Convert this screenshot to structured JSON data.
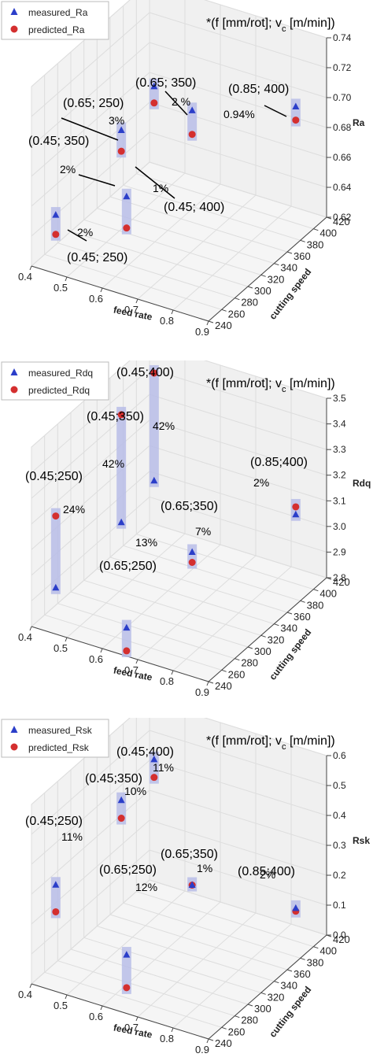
{
  "chart_data": [
    {
      "type": "scatter",
      "projection": "3d",
      "note": "*(f [mm/rot]; v",
      "note_sub": "c",
      "note_tail": " [m/min])",
      "xlabel": "feed rate",
      "ylabel": "cutting speed",
      "zlabel": "Ra",
      "xlim": [
        0.4,
        0.9
      ],
      "ylim": [
        240,
        420
      ],
      "zlim": [
        0.62,
        0.74
      ],
      "x_ticks": [
        "0.4",
        "0.5",
        "0.6",
        "0.7",
        "0.8",
        "0.9"
      ],
      "y_ticks": [
        "240",
        "260",
        "280",
        "300",
        "320",
        "340",
        "360",
        "380",
        "400",
        "420"
      ],
      "z_ticks": [
        "0.62",
        "0.64",
        "0.66",
        "0.68",
        "0.70",
        "0.72",
        "0.74"
      ],
      "legend": [
        "measured_Ra",
        "predicted_Ra"
      ],
      "legend_position": "top-left",
      "grid": true,
      "series": [
        {
          "name": "measured_Ra",
          "marker": "triangle",
          "color": "#2b3ec9",
          "points": [
            {
              "f": 0.45,
              "vc": 250,
              "z": 0.654
            },
            {
              "f": 0.45,
              "vc": 350,
              "z": 0.672
            },
            {
              "f": 0.65,
              "vc": 250,
              "z": 0.681
            },
            {
              "f": 0.45,
              "vc": 400,
              "z": 0.682
            },
            {
              "f": 0.65,
              "vc": 350,
              "z": 0.7
            },
            {
              "f": 0.85,
              "vc": 400,
              "z": 0.698
            }
          ]
        },
        {
          "name": "predicted_Ra",
          "marker": "circle",
          "color": "#d42f2f",
          "points": [
            {
              "f": 0.45,
              "vc": 250,
              "z": 0.641
            },
            {
              "f": 0.45,
              "vc": 350,
              "z": 0.658
            },
            {
              "f": 0.65,
              "vc": 250,
              "z": 0.66
            },
            {
              "f": 0.45,
              "vc": 400,
              "z": 0.671
            },
            {
              "f": 0.65,
              "vc": 350,
              "z": 0.684
            },
            {
              "f": 0.85,
              "vc": 400,
              "z": 0.689
            }
          ]
        }
      ],
      "annotations": [
        {
          "text": "(0.45; 250)",
          "pct": "2%"
        },
        {
          "text": "(0.45; 350)",
          "pct": "2%"
        },
        {
          "text": "(0.65; 250)",
          "pct": "3%"
        },
        {
          "text": "(0.45; 400)",
          "pct": "1%"
        },
        {
          "text": "(0.65; 350)",
          "pct": "2 %"
        },
        {
          "text": "(0.85; 400)",
          "pct": "0.94%"
        }
      ]
    },
    {
      "type": "scatter",
      "projection": "3d",
      "note": "*(f [mm/rot]; v",
      "note_sub": "c",
      "note_tail": " [m/min])",
      "xlabel": "feed rate",
      "ylabel": "cutting speed",
      "zlabel": "Rdq",
      "xlim": [
        0.4,
        0.9
      ],
      "ylim": [
        240,
        420
      ],
      "zlim": [
        2.8,
        3.5
      ],
      "x_ticks": [
        "0.4",
        "0.5",
        "0.6",
        "0.7",
        "0.8",
        "0.9"
      ],
      "y_ticks": [
        "240",
        "260",
        "280",
        "300",
        "320",
        "340",
        "360",
        "380",
        "400",
        "420"
      ],
      "z_ticks": [
        "2.8",
        "2.9",
        "3.0",
        "3.1",
        "3.2",
        "3.3",
        "3.4",
        "3.5"
      ],
      "legend": [
        "measured_Rdq",
        "predicted_Rdq"
      ],
      "legend_position": "top-left",
      "grid": true,
      "series": [
        {
          "name": "measured_Rdq",
          "marker": "triangle",
          "color": "#2b3ec9",
          "points": [
            {
              "f": 0.45,
              "vc": 250,
              "z": 2.95
            },
            {
              "f": 0.45,
              "vc": 350,
              "z": 2.98
            },
            {
              "f": 0.45,
              "vc": 400,
              "z": 3.03
            },
            {
              "f": 0.65,
              "vc": 250,
              "z": 2.88
            },
            {
              "f": 0.65,
              "vc": 350,
              "z": 2.95
            },
            {
              "f": 0.85,
              "vc": 400,
              "z": 3.07
            }
          ]
        },
        {
          "name": "predicted_Rdq",
          "marker": "circle",
          "color": "#d42f2f",
          "points": [
            {
              "f": 0.45,
              "vc": 250,
              "z": 3.23
            },
            {
              "f": 0.45,
              "vc": 350,
              "z": 3.4
            },
            {
              "f": 0.45,
              "vc": 400,
              "z": 3.45
            },
            {
              "f": 0.65,
              "vc": 250,
              "z": 2.79
            },
            {
              "f": 0.65,
              "vc": 350,
              "z": 2.91
            },
            {
              "f": 0.85,
              "vc": 400,
              "z": 3.1
            }
          ]
        }
      ],
      "annotations": [
        {
          "text": "(0.45;250)",
          "pct": "24%"
        },
        {
          "text": "(0.45;350)",
          "pct": "42%"
        },
        {
          "text": "(0.45;400)",
          "pct": "42%"
        },
        {
          "text": "(0.65;250)",
          "pct": "13%"
        },
        {
          "text": "(0.65;350)",
          "pct": "7%"
        },
        {
          "text": "(0.85;400)",
          "pct": "2%"
        }
      ]
    },
    {
      "type": "scatter",
      "projection": "3d",
      "note": "*(f [mm/rot]; v",
      "note_sub": "c",
      "note_tail": " [m/min])",
      "xlabel": "feed rate",
      "ylabel": "cutting speed",
      "zlabel": "Rsk",
      "xlim": [
        0.4,
        0.9
      ],
      "ylim": [
        240,
        420
      ],
      "zlim": [
        0.0,
        0.6
      ],
      "x_ticks": [
        "0.4",
        "0.5",
        "0.6",
        "0.7",
        "0.8",
        "0.9"
      ],
      "y_ticks": [
        "240",
        "260",
        "280",
        "300",
        "320",
        "340",
        "360",
        "380",
        "400",
        "420"
      ],
      "z_ticks": [
        "0.0",
        "0.1",
        "0.2",
        "0.3",
        "0.4",
        "0.5",
        "0.6"
      ],
      "legend": [
        "measured_Rsk",
        "predicted_Rsk"
      ],
      "legend_position": "top-left",
      "grid": true,
      "series": [
        {
          "name": "measured_Rsk",
          "marker": "triangle",
          "color": "#2b3ec9",
          "points": [
            {
              "f": 0.45,
              "vc": 250,
              "z": 0.33
            },
            {
              "f": 0.45,
              "vc": 350,
              "z": 0.42
            },
            {
              "f": 0.45,
              "vc": 400,
              "z": 0.46
            },
            {
              "f": 0.65,
              "vc": 250,
              "z": 0.17
            },
            {
              "f": 0.65,
              "vc": 350,
              "z": 0.21
            },
            {
              "f": 0.85,
              "vc": 400,
              "z": 0.11
            }
          ]
        },
        {
          "name": "predicted_Rsk",
          "marker": "circle",
          "color": "#d42f2f",
          "points": [
            {
              "f": 0.45,
              "vc": 250,
              "z": 0.24
            },
            {
              "f": 0.45,
              "vc": 350,
              "z": 0.36
            },
            {
              "f": 0.45,
              "vc": 400,
              "z": 0.4
            },
            {
              "f": 0.65,
              "vc": 250,
              "z": 0.06
            },
            {
              "f": 0.65,
              "vc": 350,
              "z": 0.21
            },
            {
              "f": 0.85,
              "vc": 400,
              "z": 0.1
            }
          ]
        }
      ],
      "annotations": [
        {
          "text": "(0.45;250)",
          "pct": "11%"
        },
        {
          "text": "(0.45;350)",
          "pct": "10%"
        },
        {
          "text": "(0.45;400)",
          "pct": "11%"
        },
        {
          "text": "(0.65;250)",
          "pct": "12%"
        },
        {
          "text": "(0.65;350)",
          "pct": "1%"
        },
        {
          "text": "(0.85;400)",
          "pct": "2%"
        }
      ]
    }
  ],
  "colors": {
    "measured": "#2b3ec9",
    "predicted": "#d42f2f",
    "error_bar": "#b8bde8",
    "pane": "#f5f5f5",
    "grid": "#dddddd"
  }
}
